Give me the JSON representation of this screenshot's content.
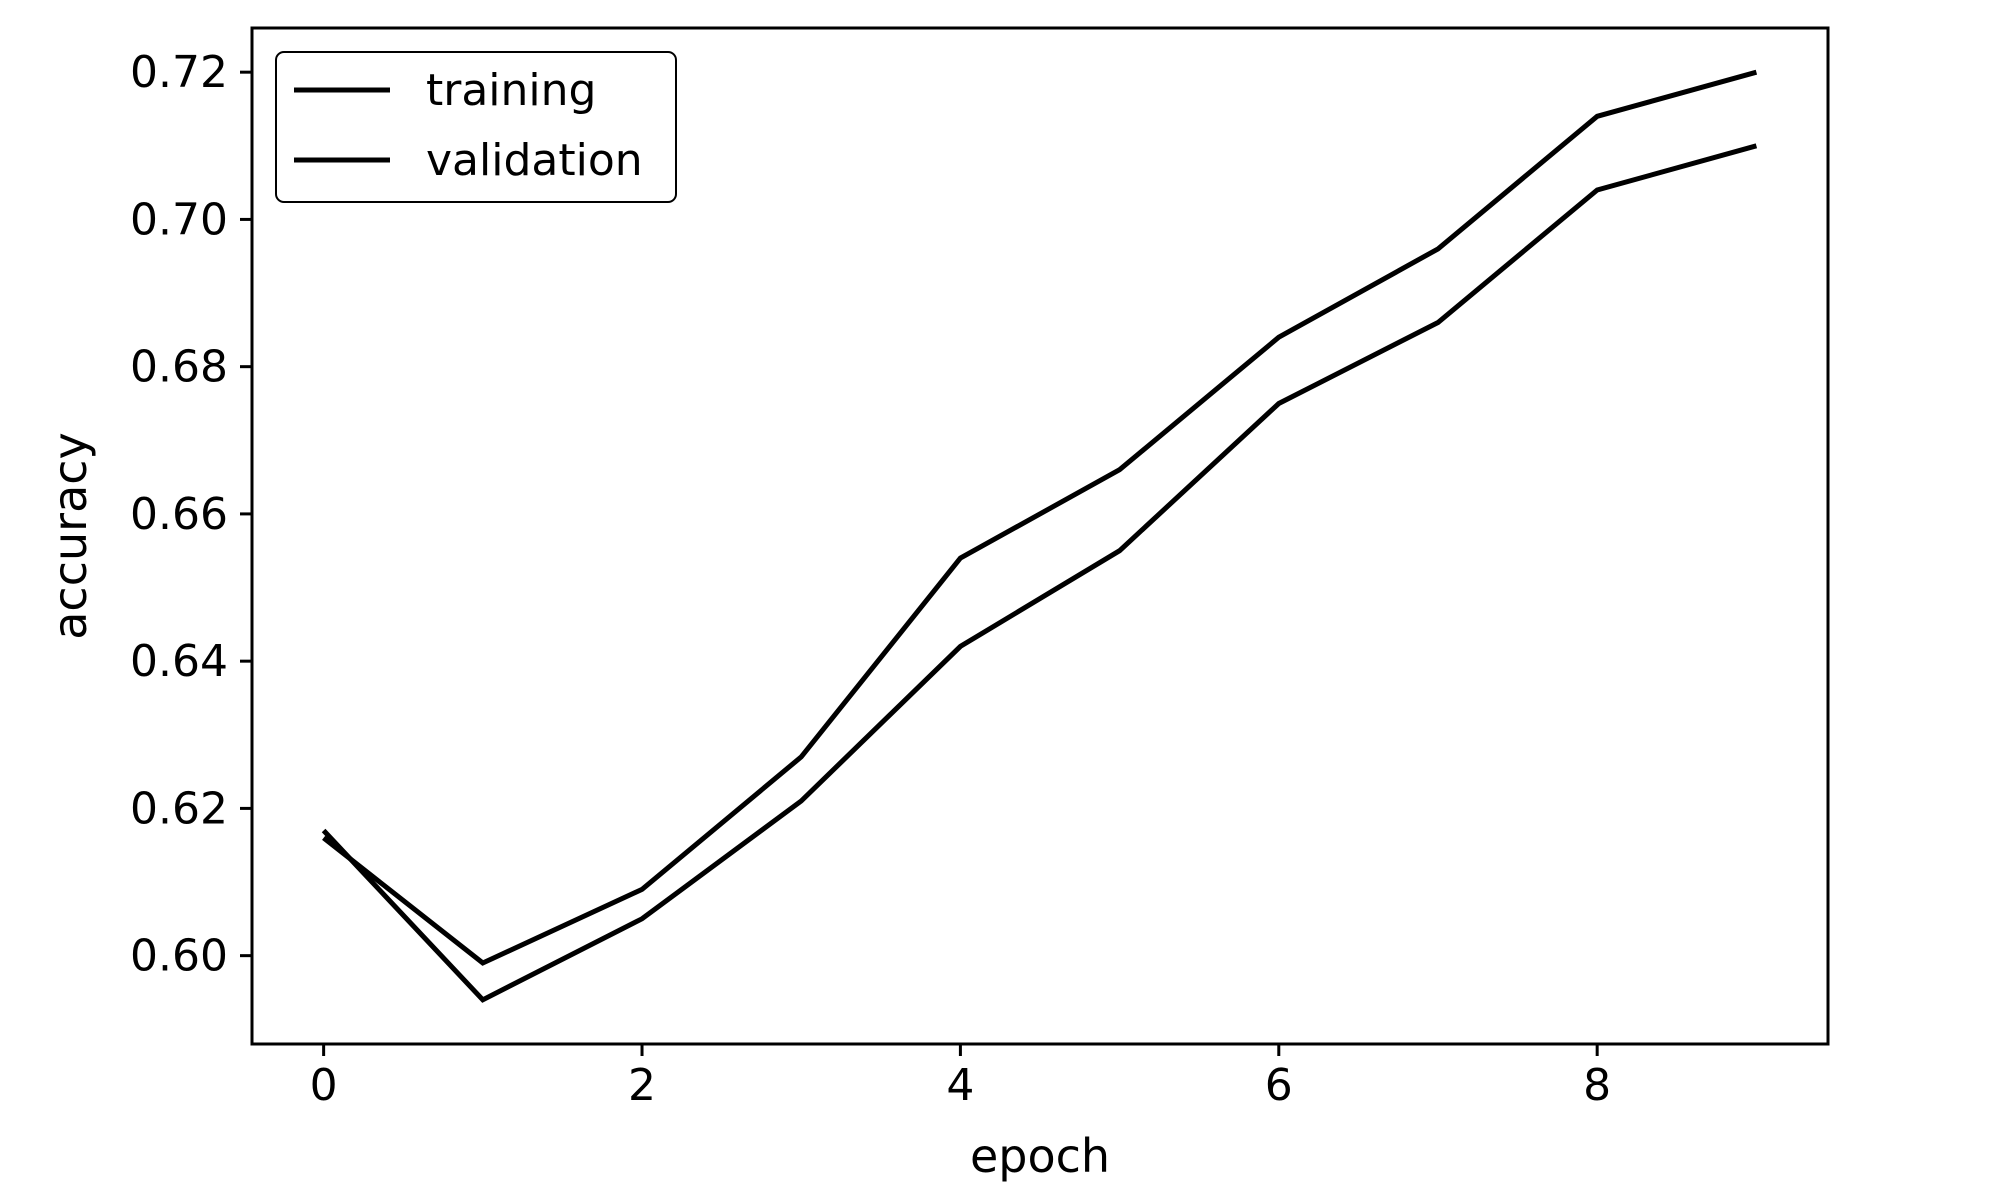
{
  "chart_data": {
    "type": "line",
    "title": "",
    "xlabel": "epoch",
    "ylabel": "accuracy",
    "x": [
      0,
      1,
      2,
      3,
      4,
      5,
      6,
      7,
      8,
      9
    ],
    "xlim": [
      -0.45,
      9.45
    ],
    "ylim": [
      0.588,
      0.726
    ],
    "xticks": [
      0,
      2,
      4,
      6,
      8
    ],
    "yticks": [
      0.6,
      0.62,
      0.64,
      0.66,
      0.68,
      0.7,
      0.72
    ],
    "xtick_labels": [
      "0",
      "2",
      "4",
      "6",
      "8"
    ],
    "ytick_labels": [
      "0.60",
      "0.62",
      "0.64",
      "0.66",
      "0.68",
      "0.70",
      "0.72"
    ],
    "grid": false,
    "legend": "top-left",
    "series": [
      {
        "name": "training",
        "color": "#000000",
        "values": [
          0.617,
          0.594,
          0.605,
          0.621,
          0.642,
          0.655,
          0.675,
          0.686,
          0.704,
          0.71
        ]
      },
      {
        "name": "validation",
        "color": "#000000",
        "values": [
          0.616,
          0.599,
          0.609,
          0.627,
          0.654,
          0.666,
          0.684,
          0.696,
          0.714,
          0.72
        ]
      }
    ]
  }
}
